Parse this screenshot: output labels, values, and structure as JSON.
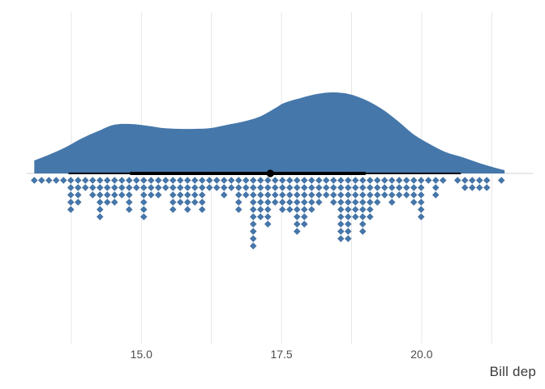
{
  "chart_data": {
    "type": "area",
    "subtype": "raincloud-halfeye-dotplot",
    "title": "",
    "xlabel": "Bill dep",
    "ylabel": "",
    "x_domain": [
      13.1,
      21.5
    ],
    "x_ticks": [
      {
        "value": 15.0,
        "label": "15.0"
      },
      {
        "value": 17.5,
        "label": "17.5"
      },
      {
        "value": 20.0,
        "label": "20.0"
      }
    ],
    "x_minor_gridlines": [
      13.75,
      16.25,
      18.75,
      21.25
    ],
    "grid": "vertical-only",
    "legend": "none",
    "density_curve": {
      "x": [
        13.09,
        13.35,
        13.64,
        13.93,
        14.22,
        14.51,
        14.8,
        15.09,
        15.38,
        15.67,
        15.96,
        16.24,
        16.53,
        16.82,
        17.11,
        17.4,
        17.55,
        17.84,
        18.13,
        18.42,
        18.7,
        18.99,
        19.28,
        19.57,
        19.86,
        20.15,
        20.44,
        20.73,
        21.02,
        21.31,
        21.48
      ],
      "height": [
        0.16,
        0.23,
        0.32,
        0.43,
        0.52,
        0.6,
        0.61,
        0.59,
        0.56,
        0.55,
        0.55,
        0.56,
        0.6,
        0.64,
        0.7,
        0.81,
        0.87,
        0.93,
        0.98,
        1.0,
        0.98,
        0.91,
        0.8,
        0.65,
        0.48,
        0.36,
        0.26,
        0.2,
        0.13,
        0.07,
        0.04
      ],
      "peak_x": 18.42
    },
    "interval": {
      "median": 17.3,
      "inner": [
        14.8,
        19.0
      ],
      "outer": [
        13.7,
        20.7
      ]
    },
    "dotplot": {
      "side": "bottom",
      "start_x": 13.09,
      "step_x": 0.1302,
      "counts": [
        1,
        1,
        1,
        1,
        1,
        5,
        4,
        2,
        3,
        6,
        4,
        4,
        3,
        5,
        2,
        6,
        3,
        3,
        2,
        5,
        4,
        5,
        4,
        5,
        2,
        2,
        3,
        2,
        5,
        3,
        10,
        6,
        7,
        4,
        5,
        5,
        8,
        7,
        5,
        4,
        3,
        4,
        9,
        9,
        6,
        8,
        6,
        4,
        3,
        4,
        3,
        3,
        4,
        6,
        1,
        3,
        1,
        0,
        1,
        2,
        2,
        2,
        2,
        0,
        1
      ]
    },
    "colors": {
      "fill": "#4577AA",
      "dot": "#4577AA",
      "dot_stroke": "#3A689B",
      "interval": "#000000",
      "gridline": "#E6E6E6",
      "baseline": "#DCDCDC",
      "tick_label": "#4D4D4D",
      "axis_title": "#3C3C3C",
      "background": "#FFFFFF"
    }
  }
}
